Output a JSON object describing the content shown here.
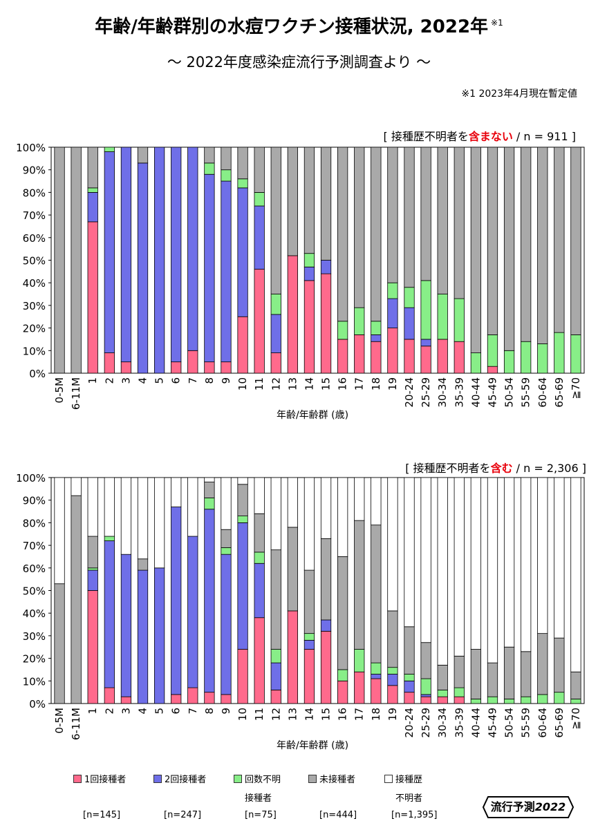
{
  "header": {
    "title": "年齢/年齢群別の水痘ワクチン接種状況, 2022年",
    "title_footnote_mark": "※1",
    "subtitle": "～ 2022年度感染症流行予測調査より ～",
    "footnote": "※1 2023年4月現在暫定値"
  },
  "chart_data": [
    {
      "type": "bar",
      "stacked": true,
      "note_prefix": "[ 接種歴不明者を",
      "note_emphasis": "含まない",
      "note_suffix": " / n = 911 ]",
      "xlabel": "年齢/年齢群 (歳)",
      "ylim": [
        0,
        100
      ],
      "yticks": [
        "0%",
        "10%",
        "20%",
        "30%",
        "40%",
        "50%",
        "60%",
        "70%",
        "80%",
        "90%",
        "100%"
      ],
      "categories": [
        "0-5M",
        "6-11M",
        "1",
        "2",
        "3",
        "4",
        "5",
        "6",
        "7",
        "8",
        "9",
        "10",
        "11",
        "12",
        "13",
        "14",
        "15",
        "16",
        "17",
        "18",
        "19",
        "20-24",
        "25-29",
        "30-34",
        "35-39",
        "40-44",
        "45-49",
        "50-54",
        "55-59",
        "60-64",
        "65-69",
        "≧70"
      ],
      "series": [
        {
          "name": "1回接種者",
          "color": "#ff6a8c",
          "values": [
            0,
            0,
            67,
            9,
            5,
            0,
            0,
            5,
            10,
            5,
            5,
            25,
            46,
            9,
            52,
            41,
            44,
            15,
            17,
            14,
            20,
            15,
            12,
            15,
            14,
            0,
            3,
            0,
            0,
            0,
            0,
            0
          ]
        },
        {
          "name": "2回接種者",
          "color": "#6f6fe8",
          "values": [
            0,
            0,
            13,
            89,
            95,
            93,
            100,
            95,
            90,
            83,
            80,
            57,
            28,
            17,
            0,
            6,
            6,
            0,
            0,
            3,
            13,
            14,
            3,
            0,
            0,
            0,
            0,
            0,
            0,
            0,
            0,
            0
          ]
        },
        {
          "name": "回数不明接種者",
          "color": "#88ee88",
          "values": [
            0,
            0,
            2,
            2,
            0,
            0,
            0,
            0,
            0,
            5,
            5,
            4,
            6,
            9,
            0,
            6,
            0,
            8,
            12,
            6,
            7,
            9,
            26,
            20,
            19,
            9,
            14,
            10,
            14,
            13,
            18,
            17
          ]
        },
        {
          "name": "未接種者",
          "color": "#a9a9a9",
          "values": [
            100,
            100,
            18,
            0,
            0,
            7,
            0,
            0,
            0,
            7,
            10,
            14,
            20,
            65,
            48,
            47,
            50,
            77,
            71,
            77,
            60,
            62,
            59,
            65,
            67,
            91,
            83,
            90,
            86,
            87,
            82,
            83
          ]
        }
      ]
    },
    {
      "type": "bar",
      "stacked": true,
      "note_prefix": "[ 接種歴不明者を",
      "note_emphasis": "含む",
      "note_suffix": " / n = 2,306 ]",
      "xlabel": "年齢/年齢群 (歳)",
      "ylim": [
        0,
        100
      ],
      "yticks": [
        "0%",
        "10%",
        "20%",
        "30%",
        "40%",
        "50%",
        "60%",
        "70%",
        "80%",
        "90%",
        "100%"
      ],
      "categories": [
        "0-5M",
        "6-11M",
        "1",
        "2",
        "3",
        "4",
        "5",
        "6",
        "7",
        "8",
        "9",
        "10",
        "11",
        "12",
        "13",
        "14",
        "15",
        "16",
        "17",
        "18",
        "19",
        "20-24",
        "25-29",
        "30-34",
        "35-39",
        "40-44",
        "45-49",
        "50-54",
        "55-59",
        "60-64",
        "65-69",
        "≧70"
      ],
      "series": [
        {
          "name": "1回接種者",
          "color": "#ff6a8c",
          "values": [
            0,
            0,
            50,
            7,
            3,
            0,
            0,
            4,
            7,
            5,
            4,
            24,
            38,
            6,
            41,
            24,
            32,
            10,
            14,
            11,
            8,
            5,
            3,
            3,
            3,
            0,
            0,
            0,
            0,
            0,
            0,
            0
          ]
        },
        {
          "name": "2回接種者",
          "color": "#6f6fe8",
          "values": [
            0,
            0,
            9,
            65,
            63,
            59,
            60,
            83,
            67,
            81,
            62,
            56,
            24,
            12,
            0,
            4,
            5,
            0,
            0,
            2,
            5,
            5,
            1,
            0,
            0,
            0,
            0,
            0,
            0,
            0,
            0,
            0
          ]
        },
        {
          "name": "回数不明接種者",
          "color": "#88ee88",
          "values": [
            0,
            0,
            1,
            2,
            0,
            0,
            0,
            0,
            0,
            5,
            3,
            3,
            5,
            6,
            0,
            3,
            0,
            5,
            10,
            5,
            3,
            3,
            7,
            3,
            4,
            2,
            3,
            2,
            3,
            4,
            5,
            2
          ]
        },
        {
          "name": "未接種者",
          "color": "#a9a9a9",
          "values": [
            53,
            92,
            14,
            0,
            0,
            5,
            0,
            0,
            0,
            7,
            8,
            14,
            17,
            44,
            37,
            28,
            36,
            50,
            57,
            61,
            25,
            21,
            16,
            11,
            14,
            22,
            15,
            23,
            20,
            27,
            24,
            12
          ]
        },
        {
          "name": "接種歴不明者",
          "color": "#ffffff",
          "values": [
            47,
            8,
            26,
            26,
            34,
            36,
            40,
            13,
            26,
            2,
            23,
            3,
            16,
            32,
            22,
            41,
            27,
            35,
            19,
            21,
            59,
            66,
            73,
            83,
            79,
            76,
            82,
            75,
            77,
            69,
            71,
            86
          ]
        }
      ]
    }
  ],
  "legend": [
    {
      "line1": "1回接種者",
      "line2": "",
      "n": "[n=145]",
      "color": "#ff6a8c"
    },
    {
      "line1": "2回接種者",
      "line2": "",
      "n": "[n=247]",
      "color": "#6f6fe8"
    },
    {
      "line1": "回数不明",
      "line2": "接種者",
      "n": "[n=75]",
      "color": "#88ee88"
    },
    {
      "line1": "未接種者",
      "line2": "",
      "n": "[n=444]",
      "color": "#a9a9a9"
    },
    {
      "line1": "接種歴",
      "line2": "不明者",
      "n": "[n=1,395]",
      "color": "#ffffff"
    }
  ],
  "brand": {
    "prefix": "流行予測",
    "year": "2022"
  }
}
